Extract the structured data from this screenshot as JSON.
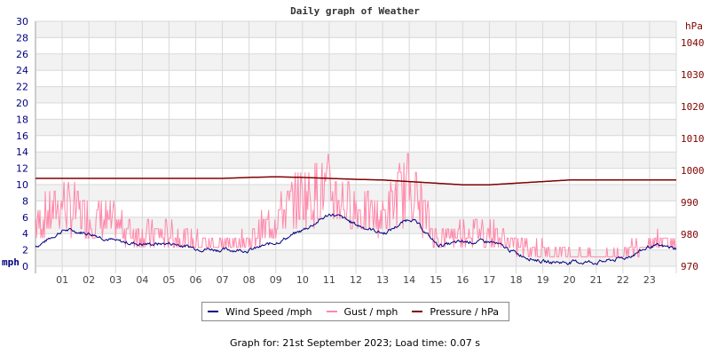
{
  "title": "Daily graph of Weather",
  "legend": [
    {
      "label": "Wind Speed /mph",
      "color": "#000080"
    },
    {
      "label": "Gust / mph",
      "color": "#ff88aa"
    },
    {
      "label": "Pressure / hPa",
      "color": "#800000"
    }
  ],
  "footer": "Graph for: 21st September 2023; Load time: 0.07 s",
  "chart_data": {
    "type": "line",
    "title": "Daily graph of Weather",
    "xlabel": "",
    "ylabel": "mph",
    "y2label": "hPa",
    "ylim": [
      0,
      30
    ],
    "y2lim": [
      970,
      1045
    ],
    "x_ticks": [
      "01",
      "02",
      "03",
      "04",
      "05",
      "06",
      "07",
      "08",
      "09",
      "10",
      "11",
      "12",
      "13",
      "14",
      "15",
      "16",
      "17",
      "18",
      "19",
      "20",
      "21",
      "22",
      "23"
    ],
    "y_ticks": [
      0,
      2,
      4,
      6,
      8,
      10,
      12,
      14,
      16,
      18,
      20,
      22,
      24,
      26,
      28,
      30
    ],
    "y2_ticks": [
      970,
      980,
      990,
      1000,
      1010,
      1020,
      1030,
      1040
    ],
    "grid": true,
    "legend_position": "bottom",
    "x": [
      0,
      1,
      2,
      3,
      4,
      5,
      6,
      7,
      8,
      9,
      10,
      11,
      12,
      13,
      14,
      15,
      16,
      17,
      18,
      19,
      20,
      21,
      22,
      23,
      24
    ],
    "series": [
      {
        "name": "Wind Speed /mph",
        "axis": "left",
        "values": [
          2.5,
          4.5,
          4.0,
          3.0,
          2.7,
          2.8,
          2.2,
          2.0,
          2.0,
          3.0,
          4.5,
          6.5,
          5.0,
          4.0,
          6.0,
          2.5,
          3.0,
          3.0,
          1.5,
          0.5,
          0.5,
          0.5,
          1.0,
          2.5,
          2.2
        ]
      },
      {
        "name": "Gust / mph",
        "axis": "left",
        "values": [
          6,
          9,
          7,
          6,
          4.5,
          4.5,
          3.5,
          3,
          3.5,
          7,
          10,
          11,
          8,
          7,
          12,
          4,
          5,
          5,
          3,
          2.5,
          2,
          1.5,
          2,
          3.5,
          3.5
        ]
      },
      {
        "name": "Pressure / hPa",
        "axis": "right",
        "values": [
          997.5,
          997.5,
          997.5,
          997.5,
          997.5,
          997.5,
          997.5,
          997.5,
          997.8,
          998,
          997.8,
          997.5,
          997.2,
          997,
          996.5,
          996,
          995.5,
          995.5,
          996,
          996.5,
          997,
          997,
          997,
          997,
          997
        ]
      }
    ]
  }
}
